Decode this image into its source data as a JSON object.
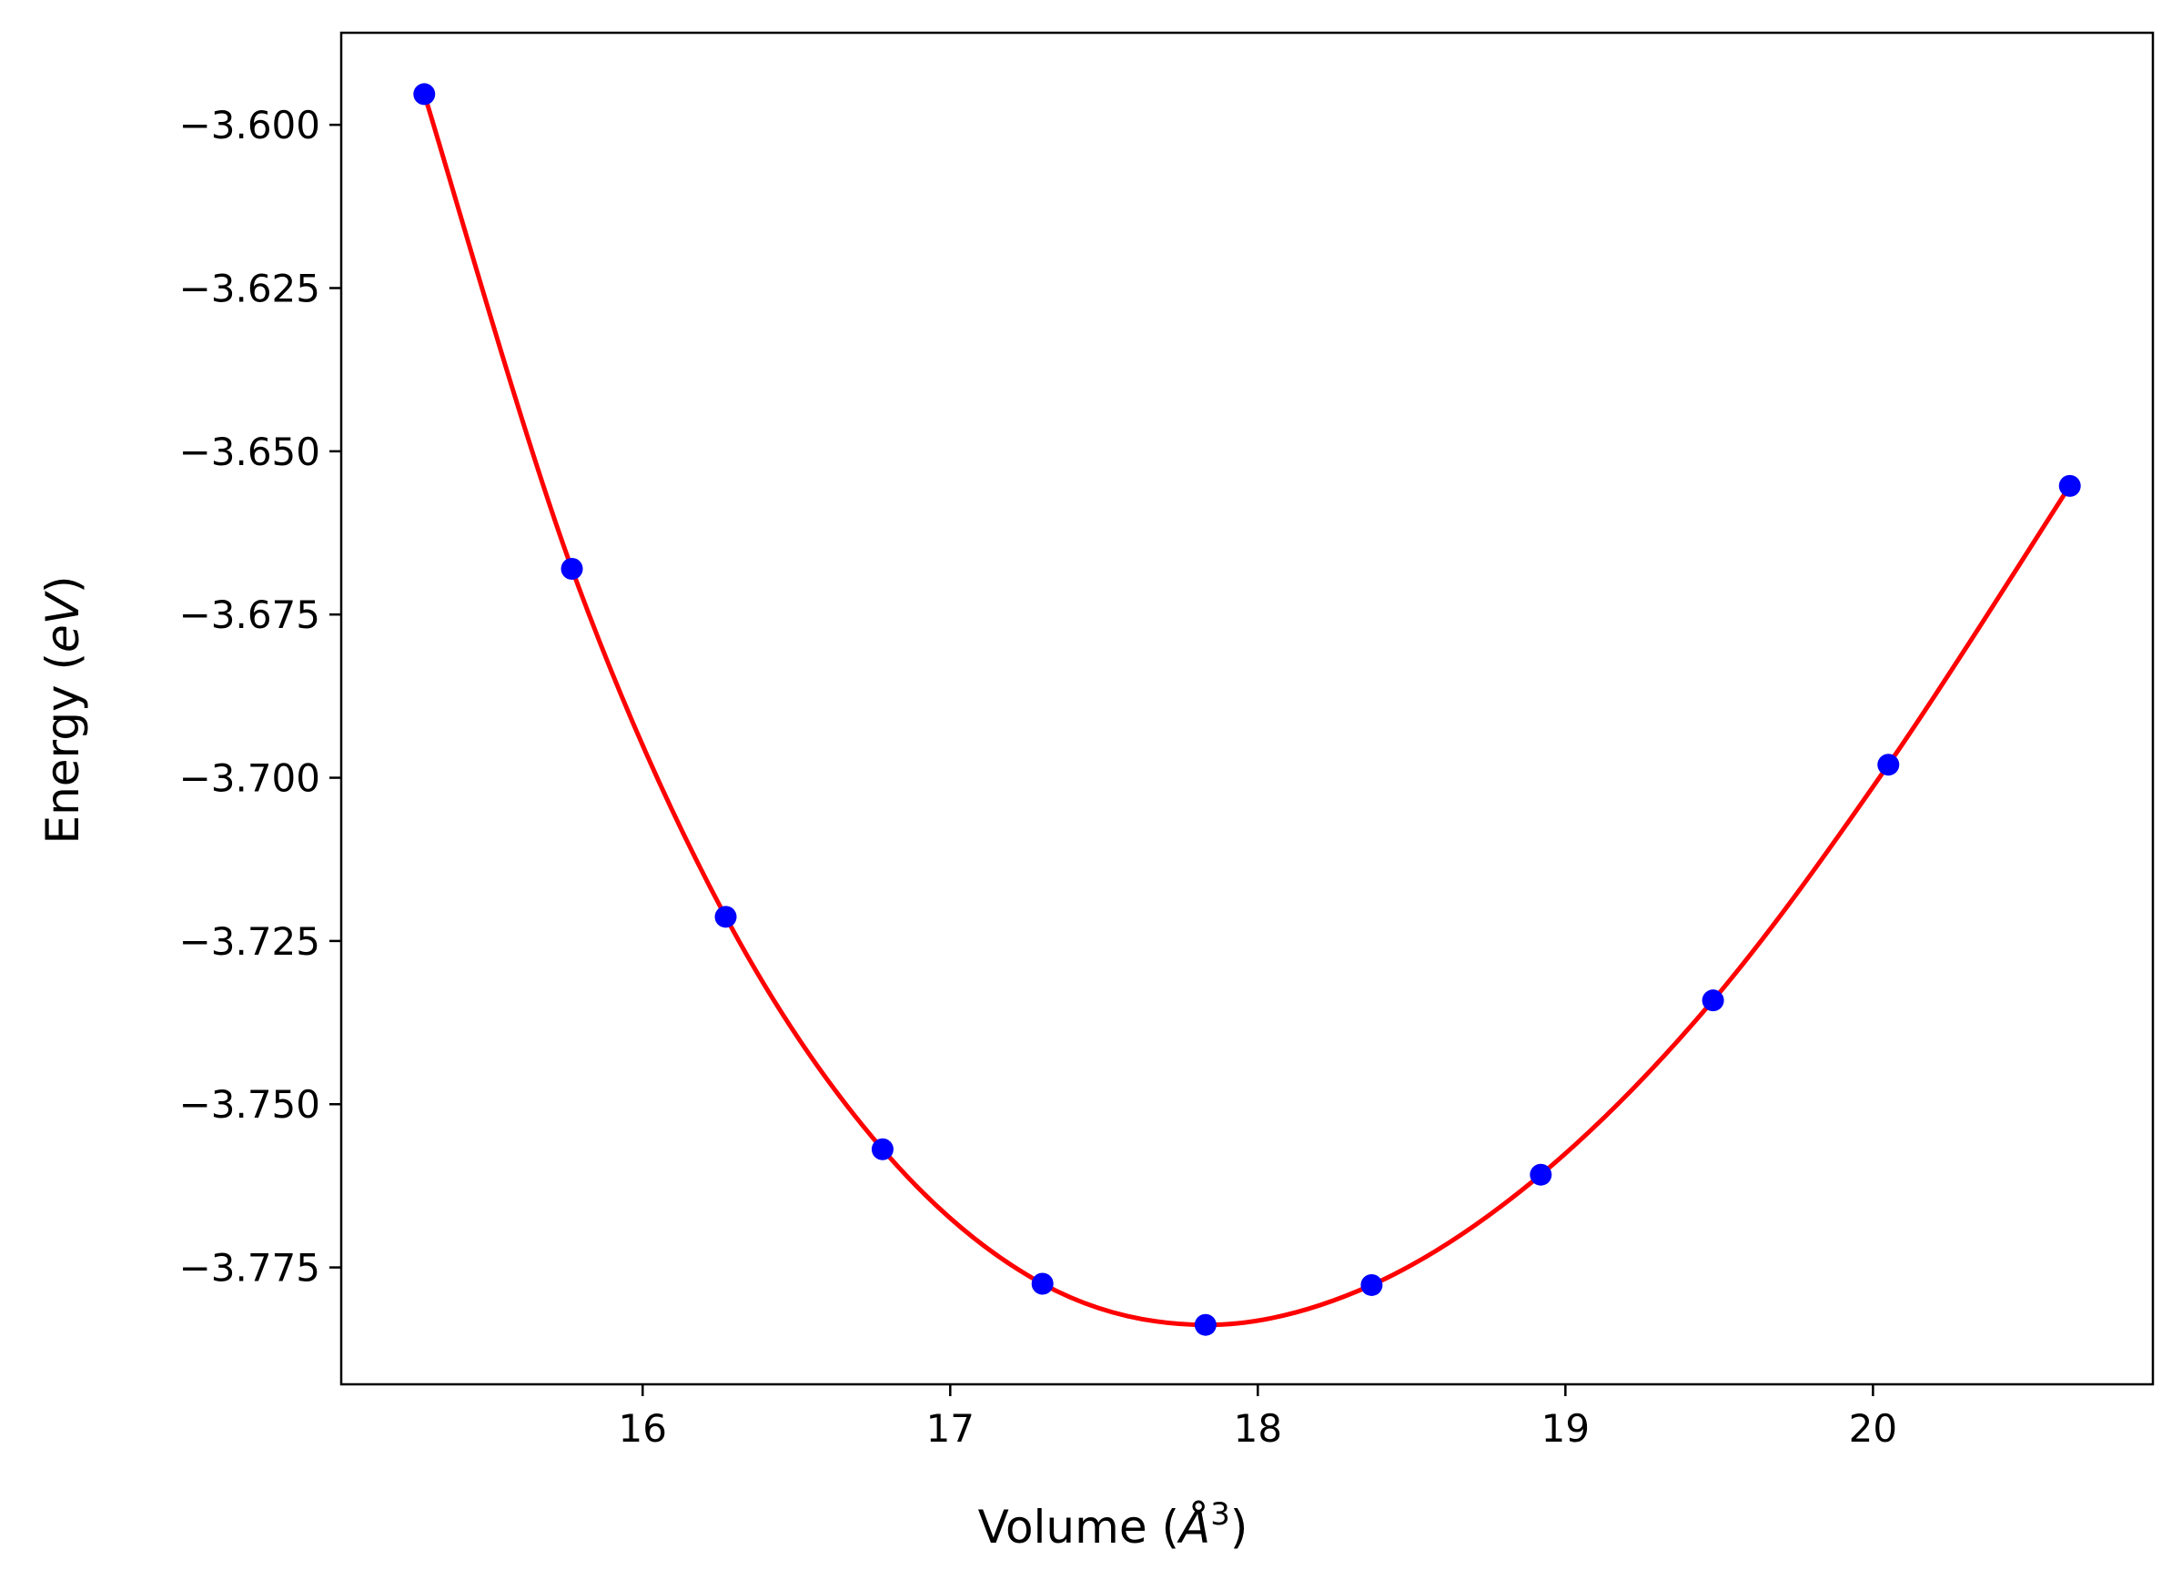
{
  "chart_data": {
    "type": "scatter",
    "xlabel": "Volume (",
    "xlabel_unit": "Å",
    "xlabel_exp": "3",
    "xlabel_close": ")",
    "ylabel": "Energy (",
    "ylabel_unit": "eV",
    "ylabel_close": ")",
    "xlim": [
      15.02,
      20.91
    ],
    "ylim": [
      -3.7929,
      -3.5859
    ],
    "x_ticks": [
      16,
      17,
      18,
      19,
      20
    ],
    "x_tick_labels": [
      "16",
      "17",
      "18",
      "19",
      "20"
    ],
    "y_ticks": [
      -3.6,
      -3.625,
      -3.65,
      -3.675,
      -3.7,
      -3.725,
      -3.75,
      -3.775
    ],
    "y_tick_labels": [
      "−3.600",
      "−3.625",
      "−3.650",
      "−3.675",
      "−3.700",
      "−3.725",
      "−3.750",
      "−3.775"
    ],
    "grid": false,
    "series": [
      {
        "kind": "scatter",
        "color": "#0000ff",
        "x": [
          15.29,
          15.77,
          16.27,
          16.78,
          17.3,
          17.83,
          18.37,
          18.92,
          19.48,
          20.05,
          20.64
        ],
        "y": [
          -3.5953,
          -3.668,
          -3.7213,
          -3.7569,
          -3.7775,
          -3.7838,
          -3.7777,
          -3.7608,
          -3.7341,
          -3.698,
          -3.6553
        ]
      },
      {
        "kind": "line",
        "color": "#ff0000",
        "x": [
          15.29,
          15.77,
          16.27,
          16.78,
          17.3,
          17.83,
          18.37,
          18.92,
          19.48,
          20.05,
          20.64
        ],
        "y": [
          -3.5953,
          -3.668,
          -3.7213,
          -3.7569,
          -3.7775,
          -3.7838,
          -3.7777,
          -3.7608,
          -3.7341,
          -3.698,
          -3.6553
        ]
      }
    ]
  }
}
